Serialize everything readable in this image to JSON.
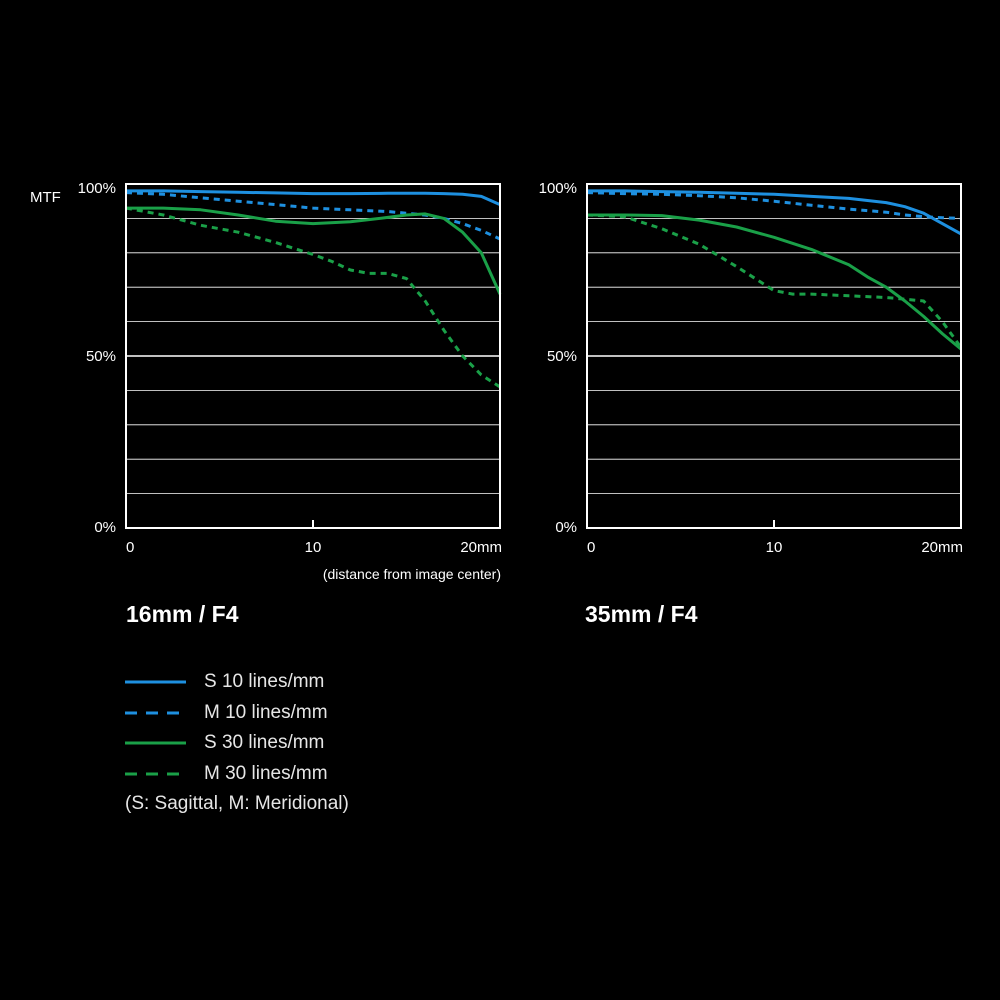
{
  "y_axis_label": "MTF",
  "x_axis_note": "(distance from image center)",
  "legend": {
    "items": [
      {
        "label": "S  10 lines/mm",
        "color": "#1e90e0",
        "dashed": false
      },
      {
        "label": "M 10 lines/mm",
        "color": "#1e90e0",
        "dashed": true
      },
      {
        "label": "S  30 lines/mm",
        "color": "#1aa048",
        "dashed": false
      },
      {
        "label": "M 30 lines/mm",
        "color": "#1aa048",
        "dashed": true
      }
    ],
    "note": "(S: Sagittal, M: Meridional)"
  },
  "chart_data": [
    {
      "type": "line",
      "title": "16mm / F4",
      "xlim": [
        0,
        20
      ],
      "ylim": [
        0,
        100
      ],
      "x_ticks": [
        "0",
        "10",
        "20mm"
      ],
      "y_ticks": [
        "0%",
        "50%",
        "100%"
      ],
      "grid": true,
      "series": [
        {
          "name": "S  10 lines/mm",
          "color": "#1e90e0",
          "dashed": false,
          "x": [
            0,
            2,
            4,
            6,
            8,
            10,
            12,
            14,
            16,
            17,
            18,
            19,
            20
          ],
          "y": [
            98,
            98,
            97.8,
            97.6,
            97.4,
            97.2,
            97.2,
            97.3,
            97.3,
            97.2,
            97,
            96.4,
            94
          ]
        },
        {
          "name": "M 10 lines/mm",
          "color": "#1e90e0",
          "dashed": true,
          "x": [
            0,
            2,
            4,
            6,
            8,
            10,
            12,
            14,
            16,
            17,
            18,
            19,
            20
          ],
          "y": [
            97.5,
            97,
            96,
            95,
            94,
            93,
            92.5,
            92,
            91,
            90,
            88.5,
            86.5,
            84
          ]
        },
        {
          "name": "S  30 lines/mm",
          "color": "#1aa048",
          "dashed": false,
          "x": [
            0,
            2,
            4,
            6,
            8,
            10,
            12,
            14,
            15,
            16,
            17,
            18,
            19,
            19.5,
            20
          ],
          "y": [
            93,
            93,
            92.5,
            91,
            89.2,
            88.5,
            89,
            90.3,
            91,
            91.3,
            90,
            86,
            80,
            74,
            68
          ]
        },
        {
          "name": "M 30 lines/mm",
          "color": "#1aa048",
          "dashed": true,
          "x": [
            0,
            2,
            4,
            6,
            8,
            10,
            11,
            12,
            13,
            14,
            15,
            16,
            17,
            18,
            19,
            20
          ],
          "y": [
            93,
            91,
            88,
            86,
            83,
            79.5,
            77.5,
            75,
            74,
            74,
            72.5,
            66,
            57.5,
            50,
            44.5,
            41
          ]
        }
      ]
    },
    {
      "type": "line",
      "title": "35mm / F4",
      "xlim": [
        0,
        20
      ],
      "ylim": [
        0,
        100
      ],
      "x_ticks": [
        "0",
        "10",
        "20mm"
      ],
      "y_ticks": [
        "0%",
        "50%",
        "100%"
      ],
      "grid": true,
      "series": [
        {
          "name": "S  10 lines/mm",
          "color": "#1e90e0",
          "dashed": false,
          "x": [
            0,
            2,
            4,
            6,
            8,
            10,
            12,
            14,
            16,
            17,
            18,
            19,
            20
          ],
          "y": [
            98,
            98,
            97.8,
            97.6,
            97.3,
            97,
            96.4,
            95.8,
            94.6,
            93.4,
            91.5,
            88.5,
            85.5
          ]
        },
        {
          "name": "M 10 lines/mm",
          "color": "#1e90e0",
          "dashed": true,
          "x": [
            0,
            2,
            4,
            6,
            8,
            10,
            12,
            14,
            16,
            17,
            18,
            19,
            20
          ],
          "y": [
            97.5,
            97.2,
            97,
            96.6,
            96,
            95,
            93.8,
            92.7,
            91.8,
            91,
            90.5,
            90.2,
            90
          ]
        },
        {
          "name": "S  30 lines/mm",
          "color": "#1aa048",
          "dashed": false,
          "x": [
            0,
            2,
            4,
            6,
            8,
            10,
            12,
            14,
            15,
            16,
            17,
            18,
            19,
            20
          ],
          "y": [
            91,
            91,
            90.8,
            89.5,
            87.5,
            84.5,
            81,
            76.5,
            73,
            70,
            66,
            61.5,
            56.5,
            52
          ]
        },
        {
          "name": "M 30 lines/mm",
          "color": "#1aa048",
          "dashed": true,
          "x": [
            0,
            2,
            4,
            6,
            8,
            9,
            10,
            11,
            12,
            14,
            16,
            17,
            18,
            19,
            20
          ],
          "y": [
            91,
            90.5,
            87,
            82.5,
            76,
            72.5,
            69,
            68,
            68,
            67.5,
            67,
            66.5,
            66,
            60,
            52.5
          ]
        }
      ]
    }
  ]
}
